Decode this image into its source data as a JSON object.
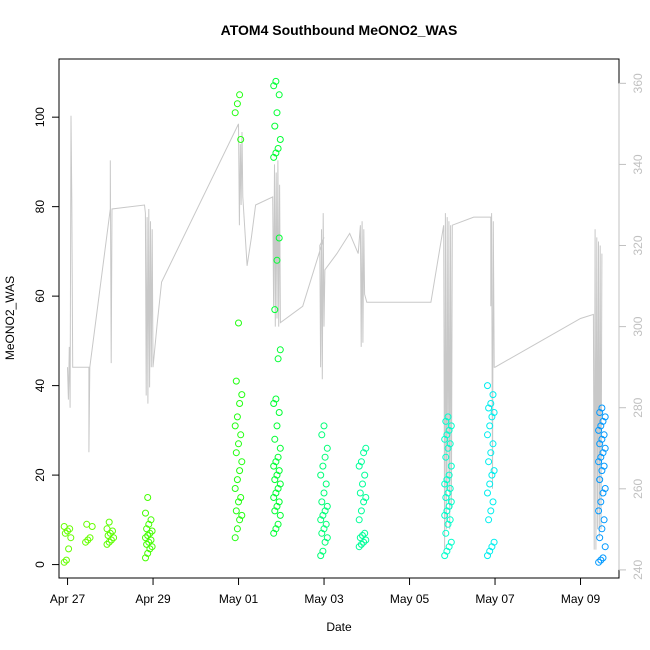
{
  "chart_data": {
    "type": "scatter",
    "title": "ATOM4 Southbound MeONO2_WAS",
    "xlabel": "Date",
    "ylabel": "MeONO2_WAS",
    "x_range_days": [
      -0.2,
      12.9
    ],
    "ylim": [
      -3,
      113
    ],
    "ylim_right": [
      238,
      366
    ],
    "x_ticks": [
      {
        "day": 0,
        "label": "Apr 27"
      },
      {
        "day": 2,
        "label": "Apr 29"
      },
      {
        "day": 4,
        "label": "May 01"
      },
      {
        "day": 6,
        "label": "May 03"
      },
      {
        "day": 8,
        "label": "May 05"
      },
      {
        "day": 10,
        "label": "May 07"
      },
      {
        "day": 12,
        "label": "May 09"
      }
    ],
    "y_ticks": [
      0,
      20,
      40,
      60,
      80,
      100
    ],
    "y_ticks_right": [
      240,
      260,
      280,
      300,
      320,
      340,
      360
    ],
    "colors": {
      "axis": "#000000",
      "right_axis": "#c0c0c0",
      "secondary_line": "#c8c8c8",
      "point_colors": [
        "#66ff00",
        "#00ff33",
        "#00ffcc",
        "#0099ff"
      ]
    },
    "series": [
      {
        "name": "MeONO2_WAS",
        "kind": "points",
        "description": "colored open circles by time"
      },
      {
        "name": "secondary (right axis)",
        "kind": "line",
        "color": "#c8c8c8"
      }
    ],
    "point_clusters": [
      {
        "day": 0.0,
        "values": [
          0.5,
          1,
          3.5,
          6,
          7,
          7.5,
          8,
          8.5
        ],
        "color": "#66ff00"
      },
      {
        "day": 0.5,
        "values": [
          5,
          5.5,
          6,
          8.5,
          9
        ],
        "color": "#66ff00"
      },
      {
        "day": 1.0,
        "values": [
          4.5,
          5,
          5.5,
          6,
          6.5,
          7,
          7.5,
          8,
          9.5
        ],
        "color": "#5cff00"
      },
      {
        "day": 1.9,
        "values": [
          1.5,
          2.5,
          3.5,
          4,
          4.5,
          5,
          5.5,
          6,
          6.5,
          7,
          7.5,
          8,
          9,
          10,
          11.5,
          15
        ],
        "color": "#44ff00"
      },
      {
        "day": 4.0,
        "values": [
          6,
          8,
          10,
          11,
          12,
          14,
          15,
          17,
          19,
          21,
          23,
          25,
          27,
          29,
          31,
          33,
          36,
          38,
          41,
          54,
          95,
          101,
          103,
          105
        ],
        "color": "#22ff11"
      },
      {
        "day": 4.9,
        "values": [
          7,
          8,
          9,
          11,
          12,
          13,
          14,
          15,
          16,
          17,
          18,
          19,
          20,
          21,
          22,
          23,
          24,
          26,
          28,
          31,
          34,
          36,
          37,
          46,
          48,
          57,
          68,
          73,
          91,
          92,
          93,
          95,
          98,
          101,
          105,
          107,
          108
        ],
        "color": "#00ff33"
      },
      {
        "day": 6.0,
        "values": [
          2,
          3,
          5,
          6,
          7,
          8,
          9,
          10,
          11,
          12,
          13,
          14,
          16,
          18,
          20,
          22,
          24,
          26,
          29,
          31
        ],
        "color": "#00ff77"
      },
      {
        "day": 6.9,
        "values": [
          4,
          4.5,
          5,
          5.5,
          6,
          6.5,
          7,
          10,
          12,
          14,
          15,
          16,
          18,
          20,
          22,
          23,
          25,
          26
        ],
        "color": "#00ff99"
      },
      {
        "day": 8.9,
        "values": [
          2,
          3,
          4,
          5,
          7,
          9,
          10,
          11,
          12,
          13,
          14,
          15,
          16,
          17,
          18,
          19,
          20,
          22,
          24,
          26,
          27,
          28,
          29,
          30,
          31,
          32,
          33
        ],
        "color": "#00ffcc"
      },
      {
        "day": 9.9,
        "values": [
          2,
          3,
          4,
          5,
          10,
          12,
          14,
          16,
          18,
          20,
          21,
          23,
          25,
          27,
          29,
          31,
          33,
          34,
          35,
          36,
          38,
          40
        ],
        "color": "#00eeee"
      },
      {
        "day": 12.5,
        "values": [
          0.5,
          1,
          1.5,
          4,
          6,
          8,
          10,
          12,
          14,
          16,
          17,
          19,
          21,
          22,
          23,
          24,
          25,
          26,
          27,
          28,
          29,
          30,
          31,
          32,
          33,
          34,
          35
        ],
        "color": "#0099ff"
      }
    ],
    "secondary_line": [
      [
        0.0,
        290
      ],
      [
        0.02,
        282
      ],
      [
        0.04,
        295
      ],
      [
        0.06,
        280
      ],
      [
        0.08,
        352
      ],
      [
        0.1,
        331
      ],
      [
        0.12,
        290
      ],
      [
        0.5,
        290
      ],
      [
        0.5,
        269
      ],
      [
        0.52,
        290
      ],
      [
        1.0,
        329
      ],
      [
        1.0,
        341
      ],
      [
        1.02,
        291
      ],
      [
        1.04,
        329
      ],
      [
        1.8,
        330
      ],
      [
        1.82,
        328
      ],
      [
        1.84,
        283
      ],
      [
        1.86,
        327
      ],
      [
        1.88,
        281
      ],
      [
        1.9,
        329
      ],
      [
        1.92,
        285
      ],
      [
        1.94,
        326
      ],
      [
        1.96,
        290
      ],
      [
        1.98,
        324
      ],
      [
        2.0,
        290
      ],
      [
        2.1,
        301
      ],
      [
        2.2,
        311
      ],
      [
        4.0,
        350
      ],
      [
        4.02,
        325
      ],
      [
        4.04,
        345
      ],
      [
        4.06,
        330
      ],
      [
        4.08,
        348
      ],
      [
        4.1,
        332
      ],
      [
        4.2,
        315
      ],
      [
        4.3,
        322
      ],
      [
        4.4,
        330
      ],
      [
        4.8,
        332
      ],
      [
        4.82,
        305
      ],
      [
        4.84,
        340
      ],
      [
        4.86,
        300
      ],
      [
        4.88,
        338
      ],
      [
        4.9,
        302
      ],
      [
        4.92,
        341
      ],
      [
        4.94,
        300
      ],
      [
        4.96,
        335
      ],
      [
        4.98,
        301
      ],
      [
        5.5,
        305
      ],
      [
        6.0,
        322
      ],
      [
        5.9,
        320
      ],
      [
        5.92,
        290
      ],
      [
        5.94,
        324
      ],
      [
        5.96,
        287
      ],
      [
        5.98,
        328
      ],
      [
        6.0,
        300
      ],
      [
        6.02,
        314
      ],
      [
        6.3,
        318
      ],
      [
        6.6,
        323
      ],
      [
        6.8,
        318
      ],
      [
        6.85,
        325
      ],
      [
        6.87,
        295
      ],
      [
        6.89,
        326
      ],
      [
        6.91,
        296
      ],
      [
        6.93,
        324
      ],
      [
        6.95,
        308
      ],
      [
        7.0,
        306
      ],
      [
        8.0,
        306
      ],
      [
        8.5,
        306
      ],
      [
        8.8,
        325
      ],
      [
        8.82,
        245
      ],
      [
        8.84,
        328
      ],
      [
        8.86,
        250
      ],
      [
        8.88,
        327
      ],
      [
        8.9,
        260
      ],
      [
        8.92,
        326
      ],
      [
        8.94,
        250
      ],
      [
        8.96,
        325
      ],
      [
        8.98,
        255
      ],
      [
        9.0,
        325
      ],
      [
        9.5,
        327
      ],
      [
        9.9,
        327
      ],
      [
        9.9,
        305
      ],
      [
        9.92,
        328
      ],
      [
        9.94,
        260
      ],
      [
        9.96,
        326
      ],
      [
        9.98,
        290
      ],
      [
        10.0,
        290
      ],
      [
        11.0,
        296
      ],
      [
        12.0,
        302
      ],
      [
        12.3,
        303
      ],
      [
        12.32,
        245
      ],
      [
        12.34,
        324
      ],
      [
        12.36,
        245
      ],
      [
        12.38,
        322
      ],
      [
        12.4,
        250
      ],
      [
        12.42,
        321
      ],
      [
        12.44,
        248
      ],
      [
        12.46,
        320
      ],
      [
        12.48,
        250
      ],
      [
        12.5,
        318
      ]
    ]
  }
}
